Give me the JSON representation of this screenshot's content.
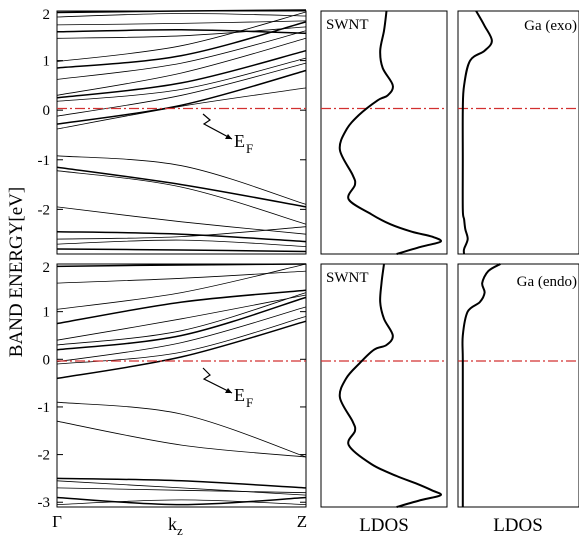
{
  "colors": {
    "fermi_line": "#d23030",
    "curve": "#000000",
    "background": "#ffffff"
  },
  "ylabel": "BAND ENERGY[eV]",
  "ytick_labels": [
    "2",
    "1",
    "0",
    "-1",
    "-2",
    "-3"
  ],
  "band_xticks": {
    "gamma": "Γ",
    "kz_main": "k",
    "kz_sub": "z",
    "z": "Z"
  },
  "ldos_label": "LDOS",
  "fermi_main": "E",
  "fermi_sub": "F",
  "panels": {
    "top_band": {
      "fermi_label": "E_F"
    },
    "top_swnt": {
      "label": "SWNT"
    },
    "top_ga": {
      "label": "Ga (exo)"
    },
    "bottom_band": {
      "fermi_label": "E_F"
    },
    "bottom_swnt": {
      "label": "SWNT"
    },
    "bottom_ga": {
      "label": "Ga (endo)"
    }
  },
  "chart_data": [
    {
      "type": "line",
      "title": "",
      "xlabel": "kz",
      "ylabel": "BAND ENERGY[eV]",
      "xlim": [
        0,
        1
      ],
      "ylim": [
        -2.9,
        2
      ],
      "x_ticks": [
        "Γ",
        "Z"
      ],
      "fermi_level": 0,
      "series": [
        {
          "x": [
            0,
            0.5,
            1
          ],
          "y": [
            1.97,
            2.0,
            2.02
          ]
        },
        {
          "x": [
            0,
            0.5,
            1
          ],
          "y": [
            1.88,
            1.95,
            1.9
          ]
        },
        {
          "x": [
            0,
            0.5,
            1
          ],
          "y": [
            1.72,
            1.75,
            1.8
          ]
        },
        {
          "x": [
            0,
            0.5,
            1
          ],
          "y": [
            1.58,
            1.62,
            1.55
          ]
        },
        {
          "x": [
            0,
            0.5,
            1
          ],
          "y": [
            1.45,
            1.5,
            1.68
          ]
        },
        {
          "x": [
            0,
            0.5,
            1
          ],
          "y": [
            0.98,
            1.3,
            1.98
          ]
        },
        {
          "x": [
            0,
            0.5,
            1
          ],
          "y": [
            0.85,
            1.1,
            1.78
          ]
        },
        {
          "x": [
            0,
            0.5,
            1
          ],
          "y": [
            0.62,
            0.95,
            1.6
          ]
        },
        {
          "x": [
            0,
            0.5,
            1
          ],
          "y": [
            0.3,
            0.75,
            1.45
          ]
        },
        {
          "x": [
            0,
            0.5,
            1
          ],
          "y": [
            0.25,
            0.55,
            1.2
          ]
        },
        {
          "x": [
            0,
            0.5,
            1
          ],
          "y": [
            0.18,
            0.42,
            1.05
          ]
        },
        {
          "x": [
            0,
            0.5,
            1
          ],
          "y": [
            -0.12,
            0.3,
            0.95
          ]
        },
        {
          "x": [
            0,
            0.5,
            1
          ],
          "y": [
            -0.28,
            0.1,
            0.8
          ]
        },
        {
          "x": [
            0,
            0.5,
            1
          ],
          "y": [
            -0.38,
            0.08,
            0.45
          ]
        },
        {
          "x": [
            0,
            0.5,
            1
          ],
          "y": [
            -0.92,
            -1.12,
            -1.9
          ]
        },
        {
          "x": [
            0,
            0.5,
            1
          ],
          "y": [
            -1.15,
            -1.5,
            -1.95
          ]
        },
        {
          "x": [
            0,
            0.5,
            1
          ],
          "y": [
            -1.22,
            -1.55,
            -2.3
          ]
        },
        {
          "x": [
            0,
            0.5,
            1
          ],
          "y": [
            -1.95,
            -2.25,
            -2.5
          ]
        },
        {
          "x": [
            0,
            0.5,
            1
          ],
          "y": [
            -2.45,
            -2.5,
            -2.65
          ]
        },
        {
          "x": [
            0,
            0.5,
            1
          ],
          "y": [
            -2.6,
            -2.55,
            -2.35
          ]
        },
        {
          "x": [
            0,
            0.5,
            1
          ],
          "y": [
            -2.7,
            -2.62,
            -2.75
          ]
        },
        {
          "x": [
            0,
            0.5,
            1
          ],
          "y": [
            -2.8,
            -2.82,
            -2.85
          ]
        }
      ]
    },
    {
      "type": "line",
      "title": "",
      "xlabel": "LDOS",
      "ylabel": "",
      "ylim": [
        -2.9,
        2
      ],
      "fermi_level": 0,
      "series": [
        {
          "name": "SWNT",
          "x": [
            0.52,
            0.5,
            0.47,
            0.49,
            0.57,
            0.53,
            0.45,
            0.3,
            0.2,
            0.15,
            0.25,
            0.27,
            0.22,
            0.4,
            0.55,
            0.72,
            0.88,
            0.95,
            0.8,
            0.6
          ],
          "y": [
            2.0,
            1.6,
            1.2,
            0.85,
            0.5,
            0.3,
            0.2,
            -0.1,
            -0.4,
            -0.8,
            -1.3,
            -1.5,
            -1.8,
            -2.1,
            -2.3,
            -2.45,
            -2.55,
            -2.65,
            -2.75,
            -2.9
          ]
        }
      ]
    },
    {
      "type": "line",
      "title": "",
      "xlabel": "LDOS",
      "ylabel": "",
      "ylim": [
        -2.9,
        2
      ],
      "fermi_level": 0,
      "series": [
        {
          "name": "Ga (exo)",
          "x": [
            0.15,
            0.22,
            0.28,
            0.22,
            0.1,
            0.05,
            0.04,
            0.04,
            0.04,
            0.05,
            0.06,
            0.08,
            0.05,
            0.05
          ],
          "y": [
            2.0,
            1.7,
            1.4,
            1.2,
            1.0,
            0.5,
            0.0,
            -1.0,
            -2.0,
            -2.2,
            -2.4,
            -2.6,
            -2.8,
            -2.9
          ]
        }
      ]
    },
    {
      "type": "line",
      "title": "",
      "xlabel": "kz",
      "ylabel": "BAND ENERGY[eV]",
      "xlim": [
        0,
        1
      ],
      "ylim": [
        -3.1,
        2
      ],
      "x_ticks": [
        "Γ",
        "Z"
      ],
      "fermi_level": 0,
      "series": [
        {
          "x": [
            0,
            0.5,
            1
          ],
          "y": [
            1.95,
            1.98,
            2.0
          ]
        },
        {
          "x": [
            0,
            0.5,
            1
          ],
          "y": [
            1.6,
            1.7,
            1.85
          ]
        },
        {
          "x": [
            0,
            0.5,
            1
          ],
          "y": [
            1.05,
            1.4,
            2.0
          ]
        },
        {
          "x": [
            0,
            0.5,
            1
          ],
          "y": [
            0.75,
            1.2,
            1.45
          ]
        },
        {
          "x": [
            0,
            0.5,
            1
          ],
          "y": [
            0.4,
            0.85,
            1.35
          ]
        },
        {
          "x": [
            0,
            0.5,
            1
          ],
          "y": [
            0.3,
            0.6,
            1.4
          ]
        },
        {
          "x": [
            0,
            0.5,
            1
          ],
          "y": [
            0.2,
            0.5,
            1.3
          ]
        },
        {
          "x": [
            0,
            0.5,
            1
          ],
          "y": [
            -0.05,
            0.35,
            1.1
          ]
        },
        {
          "x": [
            0,
            0.5,
            1
          ],
          "y": [
            -0.1,
            0.15,
            0.9
          ]
        },
        {
          "x": [
            0,
            0.5,
            1
          ],
          "y": [
            -0.4,
            0.05,
            0.8
          ]
        },
        {
          "x": [
            0,
            0.5,
            1
          ],
          "y": [
            -0.9,
            -1.15,
            -2.05
          ]
        },
        {
          "x": [
            0,
            0.5,
            1
          ],
          "y": [
            -1.3,
            -1.8,
            -2.05
          ]
        },
        {
          "x": [
            0,
            0.5,
            1
          ],
          "y": [
            -2.5,
            -2.55,
            -2.7
          ]
        },
        {
          "x": [
            0,
            0.5,
            1
          ],
          "y": [
            -2.55,
            -2.7,
            -2.85
          ]
        },
        {
          "x": [
            0,
            0.5,
            1
          ],
          "y": [
            -2.7,
            -2.75,
            -2.8
          ]
        },
        {
          "x": [
            0,
            0.5,
            1
          ],
          "y": [
            -2.9,
            -3.05,
            -2.9
          ]
        },
        {
          "x": [
            0,
            0.5,
            1
          ],
          "y": [
            -3.05,
            -2.95,
            -3.05
          ]
        }
      ]
    },
    {
      "type": "line",
      "title": "",
      "xlabel": "LDOS",
      "ylabel": "",
      "ylim": [
        -3.1,
        2
      ],
      "fermi_level": 0,
      "series": [
        {
          "name": "SWNT",
          "x": [
            0.5,
            0.48,
            0.47,
            0.5,
            0.57,
            0.52,
            0.42,
            0.3,
            0.2,
            0.15,
            0.25,
            0.27,
            0.22,
            0.4,
            0.6,
            0.75,
            0.88,
            0.95,
            0.8,
            0.6
          ],
          "y": [
            2.0,
            1.6,
            1.2,
            0.85,
            0.5,
            0.3,
            0.2,
            -0.1,
            -0.4,
            -0.8,
            -1.3,
            -1.5,
            -1.8,
            -2.2,
            -2.45,
            -2.6,
            -2.75,
            -2.85,
            -2.95,
            -3.1
          ]
        }
      ]
    },
    {
      "type": "line",
      "title": "",
      "xlabel": "LDOS",
      "ylabel": "",
      "ylim": [
        -3.1,
        2
      ],
      "fermi_level": 0,
      "series": [
        {
          "name": "Ga (endo)",
          "x": [
            0.35,
            0.25,
            0.2,
            0.22,
            0.18,
            0.08,
            0.04,
            0.04,
            0.04,
            0.04,
            0.04
          ],
          "y": [
            2.0,
            1.85,
            1.6,
            1.4,
            1.2,
            1.0,
            0.5,
            0.0,
            -1.0,
            -2.0,
            -3.1
          ]
        }
      ]
    }
  ]
}
